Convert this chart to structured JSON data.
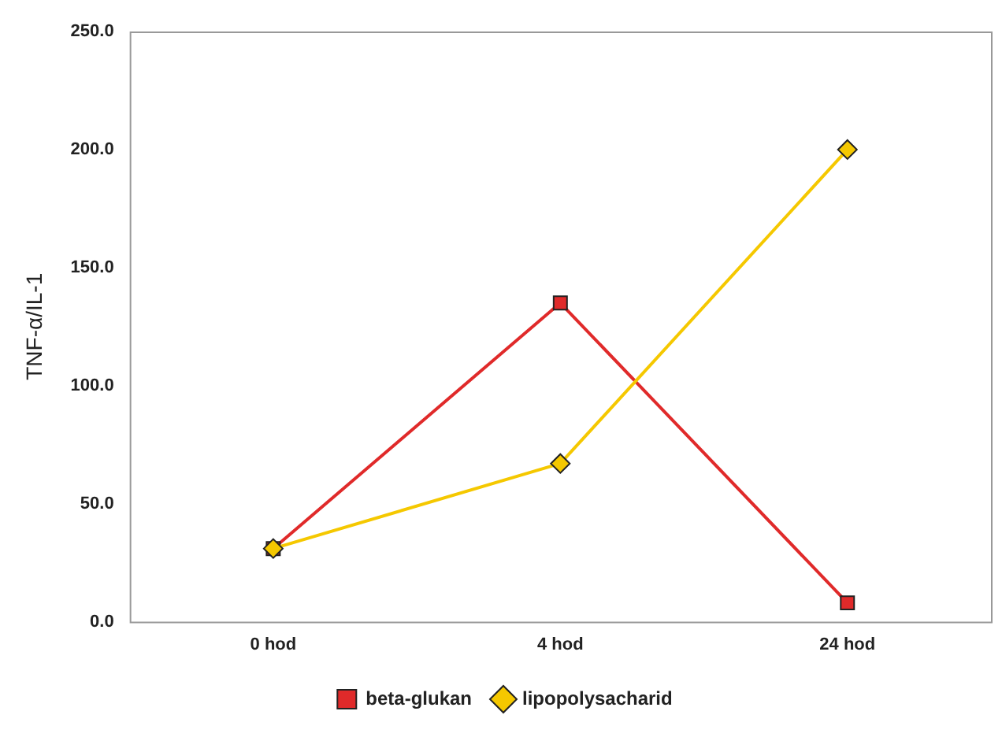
{
  "chart_data": {
    "type": "line",
    "ylabel": "TNF-α/IL-1",
    "categories": [
      "0 hod",
      "4 hod",
      "24 hod"
    ],
    "series": [
      {
        "name": "beta-glukan",
        "color": "#e02a2a",
        "marker": "square",
        "values": [
          31,
          135,
          8
        ]
      },
      {
        "name": "lipopolysacharid",
        "color": "#f5c800",
        "marker": "diamond",
        "values": [
          31,
          67,
          200
        ]
      }
    ],
    "ylim": [
      0,
      250
    ],
    "yticks": [
      {
        "value": 0,
        "label": "0.0"
      },
      {
        "value": 50,
        "label": "50.0"
      },
      {
        "value": 100,
        "label": "100.0"
      },
      {
        "value": 150,
        "label": "150.0"
      },
      {
        "value": 200,
        "label": "200.0"
      },
      {
        "value": 250,
        "label": "250.0"
      }
    ],
    "grid": false,
    "legend": "bottom",
    "line_style": "solid"
  }
}
